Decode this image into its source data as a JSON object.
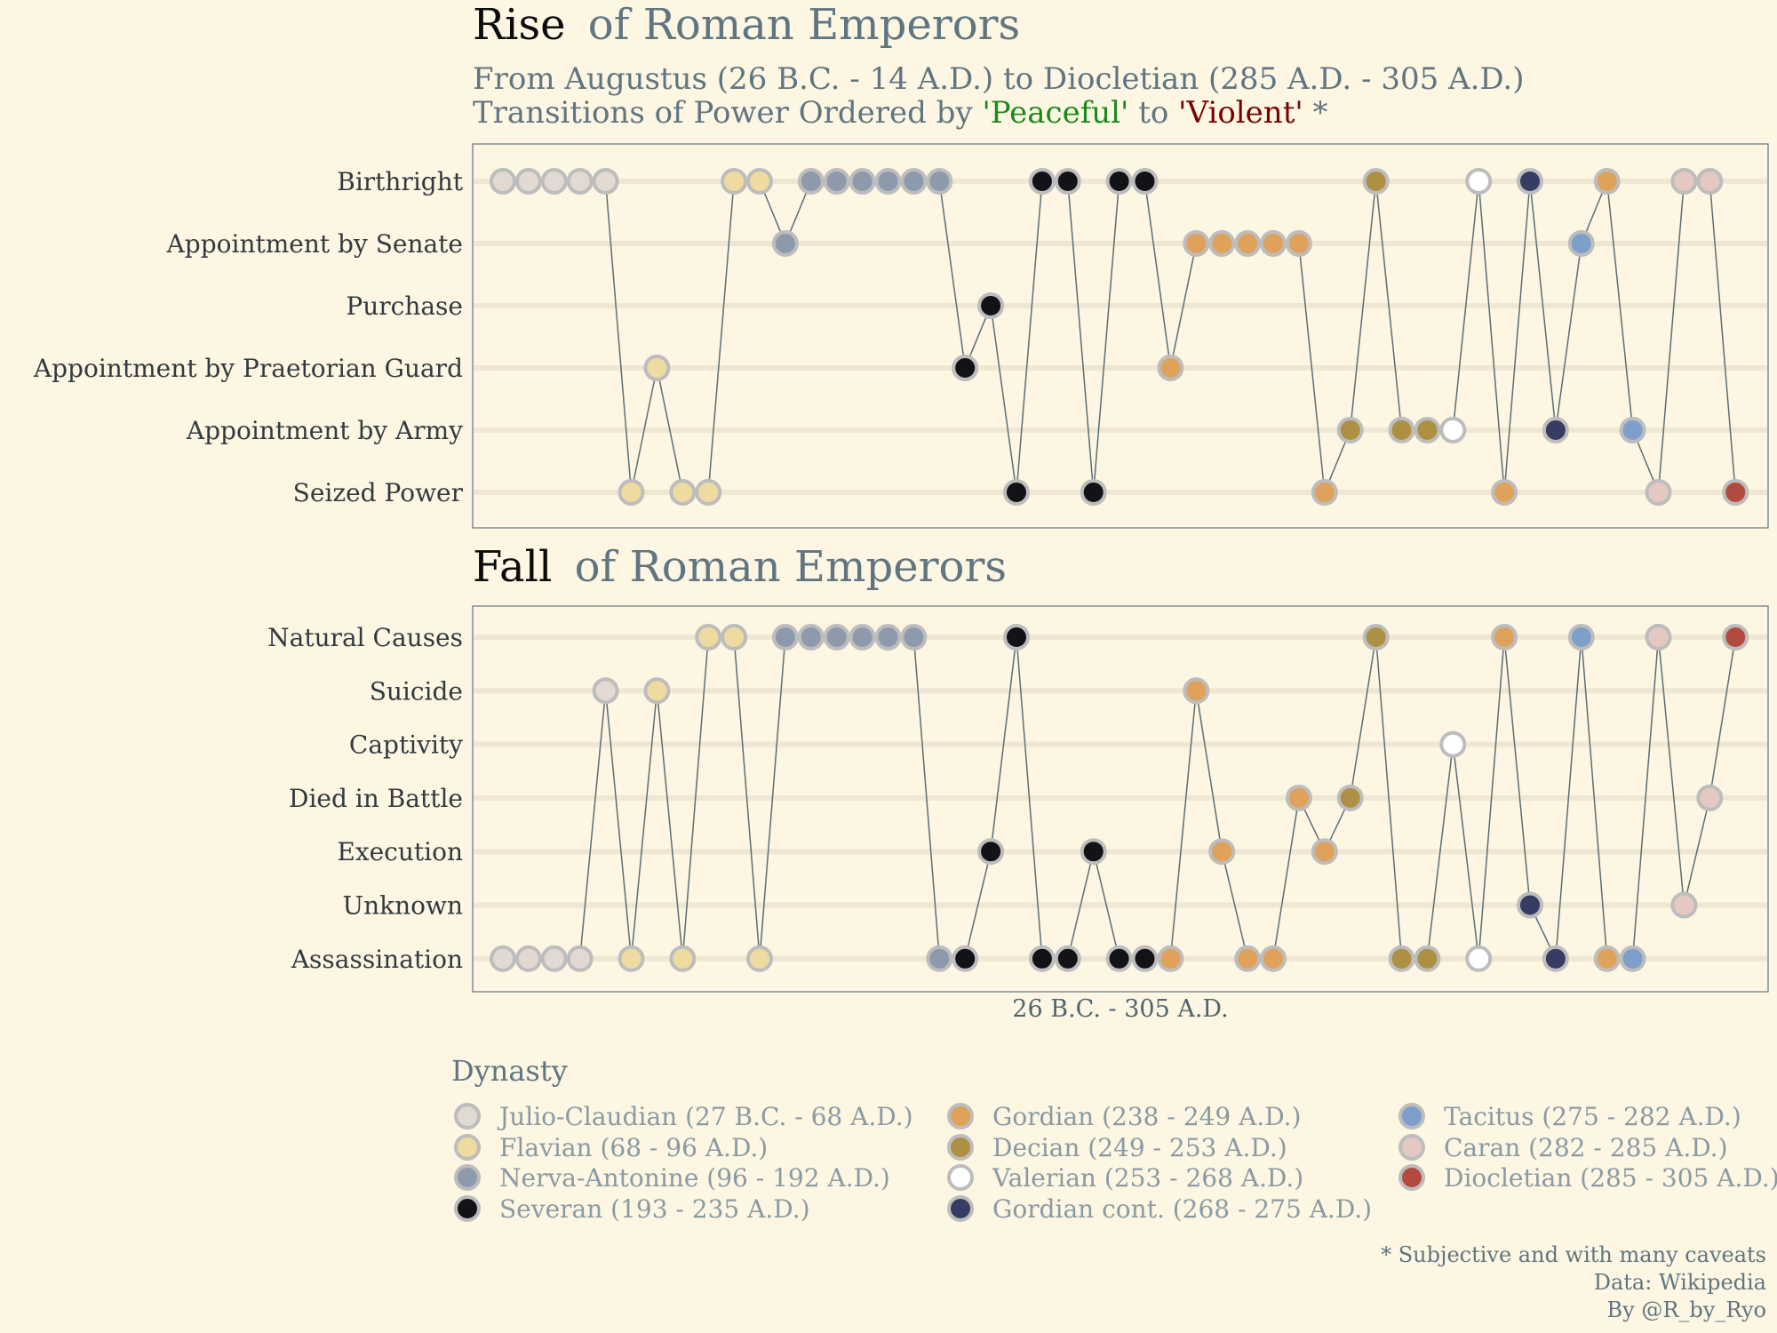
{
  "titles": {
    "rise_word": "Rise",
    "rise_rest": "of Roman Emperors",
    "fall_word": "Fall",
    "fall_rest": "of Roman Emperors",
    "subtitle_line1": "From Augustus (26 B.C. - 14 A.D.) to Diocletian (285 A.D. - 305 A.D.)",
    "subtitle_line2_a": "Transitions of Power Ordered by ",
    "subtitle_peaceful": "'Peaceful'",
    "subtitle_to": " to ",
    "subtitle_violent": "'Violent'",
    "subtitle_star": " *"
  },
  "x_axis_label": "26 B.C. - 305 A.D.",
  "legend_title": "Dynasty",
  "caption": [
    "* Subjective and with many caveats",
    "Data: Wikipedia",
    "By @R_by_Ryo"
  ],
  "colors": {
    "background": "#fdf6e3",
    "line": "#5c6e74",
    "peaceful": "#1a8a1a",
    "violent": "#7a0000"
  },
  "chart_data": [
    {
      "type": "line",
      "title": "Rise of Roman Emperors",
      "categories": [
        "Birthright",
        "Appointment by Senate",
        "Purchase",
        "Appointment by Praetorian Guard",
        "Appointment by Army",
        "Seized Power"
      ],
      "points": [
        [
          "Birthright",
          "Julio-Claudian (27 B.C. - 68 A.D.)"
        ],
        [
          "Birthright",
          "Julio-Claudian (27 B.C. - 68 A.D.)"
        ],
        [
          "Birthright",
          "Julio-Claudian (27 B.C. - 68 A.D.)"
        ],
        [
          "Birthright",
          "Julio-Claudian (27 B.C. - 68 A.D.)"
        ],
        [
          "Birthright",
          "Julio-Claudian (27 B.C. - 68 A.D.)"
        ],
        [
          "Seized Power",
          "Flavian (68 - 96 A.D.)"
        ],
        [
          "Appointment by Praetorian Guard",
          "Flavian (68 - 96 A.D.)"
        ],
        [
          "Seized Power",
          "Flavian (68 - 96 A.D.)"
        ],
        [
          "Seized Power",
          "Flavian (68 - 96 A.D.)"
        ],
        [
          "Birthright",
          "Flavian (68 - 96 A.D.)"
        ],
        [
          "Birthright",
          "Flavian (68 - 96 A.D.)"
        ],
        [
          "Appointment by Senate",
          "Nerva-Antonine (96 - 192 A.D.)"
        ],
        [
          "Birthright",
          "Nerva-Antonine (96 - 192 A.D.)"
        ],
        [
          "Birthright",
          "Nerva-Antonine (96 - 192 A.D.)"
        ],
        [
          "Birthright",
          "Nerva-Antonine (96 - 192 A.D.)"
        ],
        [
          "Birthright",
          "Nerva-Antonine (96 - 192 A.D.)"
        ],
        [
          "Birthright",
          "Nerva-Antonine (96 - 192 A.D.)"
        ],
        [
          "Birthright",
          "Nerva-Antonine (96 - 192 A.D.)"
        ],
        [
          "Appointment by Praetorian Guard",
          "Severan (193 - 235 A.D.)"
        ],
        [
          "Purchase",
          "Severan (193 - 235 A.D.)"
        ],
        [
          "Seized Power",
          "Severan (193 - 235 A.D.)"
        ],
        [
          "Birthright",
          "Severan (193 - 235 A.D.)"
        ],
        [
          "Birthright",
          "Severan (193 - 235 A.D.)"
        ],
        [
          "Seized Power",
          "Severan (193 - 235 A.D.)"
        ],
        [
          "Birthright",
          "Severan (193 - 235 A.D.)"
        ],
        [
          "Birthright",
          "Severan (193 - 235 A.D.)"
        ],
        [
          "Appointment by Praetorian Guard",
          "Gordian (238 - 249 A.D.)"
        ],
        [
          "Appointment by Senate",
          "Gordian (238 - 249 A.D.)"
        ],
        [
          "Appointment by Senate",
          "Gordian (238 - 249 A.D.)"
        ],
        [
          "Appointment by Senate",
          "Gordian (238 - 249 A.D.)"
        ],
        [
          "Appointment by Senate",
          "Gordian (238 - 249 A.D.)"
        ],
        [
          "Appointment by Senate",
          "Gordian (238 - 249 A.D.)"
        ],
        [
          "Seized Power",
          "Gordian (238 - 249 A.D.)"
        ],
        [
          "Appointment by Army",
          "Decian (249 - 253 A.D.)"
        ],
        [
          "Birthright",
          "Decian (249 - 253 A.D.)"
        ],
        [
          "Appointment by Army",
          "Decian (249 - 253 A.D.)"
        ],
        [
          "Appointment by Army",
          "Decian (249 - 253 A.D.)"
        ],
        [
          "Appointment by Army",
          "Valerian (253 - 268 A.D.)"
        ],
        [
          "Birthright",
          "Valerian (253 - 268 A.D.)"
        ],
        [
          "Seized Power",
          "Gordian (238 - 249 A.D.)"
        ],
        [
          "Birthright",
          "Gordian cont. (268 - 275 A.D.)"
        ],
        [
          "Appointment by Army",
          "Gordian cont. (268 - 275 A.D.)"
        ],
        [
          "Appointment by Senate",
          "Tacitus (275 - 282 A.D.)"
        ],
        [
          "Birthright",
          "Gordian (238 - 249 A.D.)"
        ],
        [
          "Appointment by Army",
          "Tacitus (275 - 282 A.D.)"
        ],
        [
          "Seized Power",
          "Caran (282 - 285 A.D.)"
        ],
        [
          "Birthright",
          "Caran (282 - 285 A.D.)"
        ],
        [
          "Birthright",
          "Caran (282 - 285 A.D.)"
        ],
        [
          "Seized Power",
          "Diocletian (285 - 305 A.D.)"
        ]
      ]
    },
    {
      "type": "line",
      "title": "Fall of Roman Emperors",
      "categories": [
        "Natural Causes",
        "Suicide",
        "Captivity",
        "Died in Battle",
        "Execution",
        "Unknown",
        "Assassination"
      ],
      "xlabel": "26 B.C. - 305 A.D.",
      "points": [
        [
          "Assassination",
          "Julio-Claudian (27 B.C. - 68 A.D.)"
        ],
        [
          "Assassination",
          "Julio-Claudian (27 B.C. - 68 A.D.)"
        ],
        [
          "Assassination",
          "Julio-Claudian (27 B.C. - 68 A.D.)"
        ],
        [
          "Assassination",
          "Julio-Claudian (27 B.C. - 68 A.D.)"
        ],
        [
          "Suicide",
          "Julio-Claudian (27 B.C. - 68 A.D.)"
        ],
        [
          "Assassination",
          "Flavian (68 - 96 A.D.)"
        ],
        [
          "Suicide",
          "Flavian (68 - 96 A.D.)"
        ],
        [
          "Assassination",
          "Flavian (68 - 96 A.D.)"
        ],
        [
          "Natural Causes",
          "Flavian (68 - 96 A.D.)"
        ],
        [
          "Natural Causes",
          "Flavian (68 - 96 A.D.)"
        ],
        [
          "Assassination",
          "Flavian (68 - 96 A.D.)"
        ],
        [
          "Natural Causes",
          "Nerva-Antonine (96 - 192 A.D.)"
        ],
        [
          "Natural Causes",
          "Nerva-Antonine (96 - 192 A.D.)"
        ],
        [
          "Natural Causes",
          "Nerva-Antonine (96 - 192 A.D.)"
        ],
        [
          "Natural Causes",
          "Nerva-Antonine (96 - 192 A.D.)"
        ],
        [
          "Natural Causes",
          "Nerva-Antonine (96 - 192 A.D.)"
        ],
        [
          "Natural Causes",
          "Nerva-Antonine (96 - 192 A.D.)"
        ],
        [
          "Assassination",
          "Nerva-Antonine (96 - 192 A.D.)"
        ],
        [
          "Assassination",
          "Severan (193 - 235 A.D.)"
        ],
        [
          "Execution",
          "Severan (193 - 235 A.D.)"
        ],
        [
          "Natural Causes",
          "Severan (193 - 235 A.D.)"
        ],
        [
          "Assassination",
          "Severan (193 - 235 A.D.)"
        ],
        [
          "Assassination",
          "Severan (193 - 235 A.D.)"
        ],
        [
          "Execution",
          "Severan (193 - 235 A.D.)"
        ],
        [
          "Assassination",
          "Severan (193 - 235 A.D.)"
        ],
        [
          "Assassination",
          "Severan (193 - 235 A.D.)"
        ],
        [
          "Assassination",
          "Gordian (238 - 249 A.D.)"
        ],
        [
          "Suicide",
          "Gordian (238 - 249 A.D.)"
        ],
        [
          "Execution",
          "Gordian (238 - 249 A.D.)"
        ],
        [
          "Assassination",
          "Gordian (238 - 249 A.D.)"
        ],
        [
          "Assassination",
          "Gordian (238 - 249 A.D.)"
        ],
        [
          "Died in Battle",
          "Gordian (238 - 249 A.D.)"
        ],
        [
          "Execution",
          "Gordian (238 - 249 A.D.)"
        ],
        [
          "Died in Battle",
          "Decian (249 - 253 A.D.)"
        ],
        [
          "Natural Causes",
          "Decian (249 - 253 A.D.)"
        ],
        [
          "Assassination",
          "Decian (249 - 253 A.D.)"
        ],
        [
          "Assassination",
          "Decian (249 - 253 A.D.)"
        ],
        [
          "Captivity",
          "Valerian (253 - 268 A.D.)"
        ],
        [
          "Assassination",
          "Valerian (253 - 268 A.D.)"
        ],
        [
          "Natural Causes",
          "Gordian (238 - 249 A.D.)"
        ],
        [
          "Unknown",
          "Gordian cont. (268 - 275 A.D.)"
        ],
        [
          "Assassination",
          "Gordian cont. (268 - 275 A.D.)"
        ],
        [
          "Natural Causes",
          "Tacitus (275 - 282 A.D.)"
        ],
        [
          "Assassination",
          "Gordian (238 - 249 A.D.)"
        ],
        [
          "Assassination",
          "Tacitus (275 - 282 A.D.)"
        ],
        [
          "Natural Causes",
          "Caran (282 - 285 A.D.)"
        ],
        [
          "Unknown",
          "Caran (282 - 285 A.D.)"
        ],
        [
          "Died in Battle",
          "Caran (282 - 285 A.D.)"
        ],
        [
          "Natural Causes",
          "Diocletian (285 - 305 A.D.)"
        ]
      ],
      "legend": {
        "title": "Dynasty",
        "entries": [
          {
            "name": "Julio-Claudian (27 B.C. - 68 A.D.)",
            "color": "#e2d9d2"
          },
          {
            "name": "Flavian (68 - 96 A.D.)",
            "color": "#eedba0"
          },
          {
            "name": "Nerva-Antonine (96 - 192 A.D.)",
            "color": "#8c9aac"
          },
          {
            "name": "Severan (193 - 235 A.D.)",
            "color": "#121217"
          },
          {
            "name": "Gordian (238 - 249 A.D.)",
            "color": "#e0a25a"
          },
          {
            "name": "Decian (249 - 253 A.D.)",
            "color": "#ae9042"
          },
          {
            "name": "Valerian (253 - 268 A.D.)",
            "color": "#ffffff"
          },
          {
            "name": "Gordian cont. (268 - 275 A.D.)",
            "color": "#373d62"
          },
          {
            "name": "Tacitus (275 - 282 A.D.)",
            "color": "#7e9fcb"
          },
          {
            "name": "Caran (282 - 285 A.D.)",
            "color": "#e6c8c2"
          },
          {
            "name": "Diocletian (285 - 305 A.D.)",
            "color": "#b24a3e"
          }
        ]
      }
    }
  ]
}
